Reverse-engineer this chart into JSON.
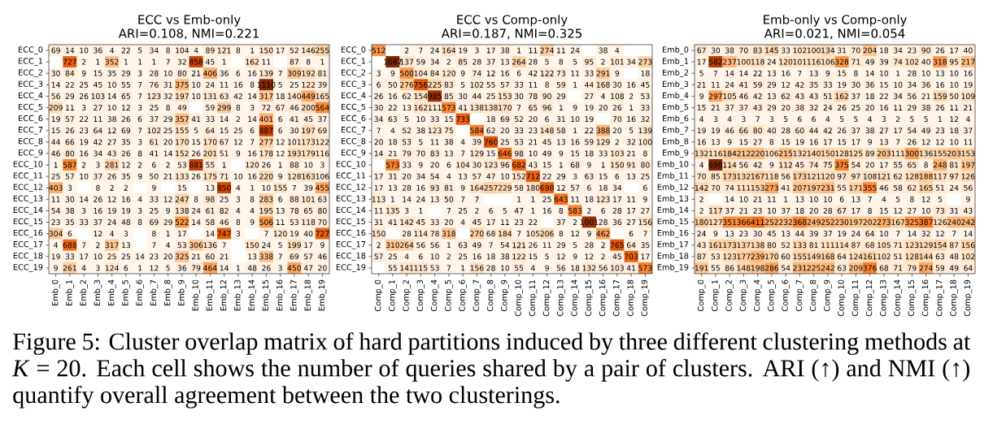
{
  "chart_data": [
    {
      "type": "heatmap",
      "title": "ECC vs Emb-only",
      "subtitle": "ARI=0.108, NMI=0.221",
      "categories": [
        "Emb_0",
        "Emb_1",
        "Emb_2",
        "Emb_3",
        "Emb_4",
        "Emb_5",
        "Emb_6",
        "Emb_7",
        "Emb_8",
        "Emb_9",
        "Emb_10",
        "Emb_11",
        "Emb_12",
        "Emb_13",
        "Emb_14",
        "Emb_15",
        "Emb_16",
        "Emb_17",
        "Emb_18",
        "Emb_19"
      ],
      "y_categories": [
        "ECC_0",
        "ECC_1",
        "ECC_2",
        "ECC_3",
        "ECC_4",
        "ECC_5",
        "ECC_6",
        "ECC_7",
        "ECC_8",
        "ECC_9",
        "ECC_10",
        "ECC_11",
        "ECC_12",
        "ECC_13",
        "ECC_14",
        "ECC_15",
        "ECC_16",
        "ECC_17",
        "ECC_18",
        "ECC_19"
      ],
      "cells": [
        [
          69,
          14,
          10,
          36,
          4,
          22,
          5,
          34,
          8,
          104,
          4,
          89,
          121,
          8,
          1,
          150,
          17,
          52,
          146,
          255
        ],
        [
          null,
          727,
          2,
          1,
          352,
          1,
          1,
          1,
          7,
          32,
          858,
          45,
          1,
          null,
          162,
          11,
          null,
          87,
          8,
          1
        ],
        [
          30,
          84,
          9,
          15,
          35,
          29,
          3,
          28,
          10,
          80,
          21,
          406,
          36,
          6,
          16,
          139,
          7,
          309,
          192,
          81
        ],
        [
          14,
          22,
          25,
          45,
          10,
          55,
          7,
          76,
          31,
          375,
          10,
          24,
          11,
          16,
          8,
          1110,
          5,
          25,
          122,
          39
        ],
        [
          56,
          29,
          26,
          103,
          14,
          65,
          7,
          123,
          32,
          197,
          10,
          131,
          63,
          42,
          14,
          317,
          18,
          140,
          449,
          165
        ],
        [
          209,
          11,
          3,
          27,
          10,
          12,
          3,
          25,
          8,
          49,
          null,
          59,
          299,
          8,
          3,
          72,
          67,
          46,
          200,
          564
        ],
        [
          19,
          57,
          22,
          11,
          38,
          26,
          6,
          37,
          29,
          357,
          41,
          33,
          14,
          2,
          14,
          401,
          6,
          41,
          45,
          37
        ],
        [
          15,
          26,
          23,
          64,
          12,
          69,
          7,
          102,
          25,
          155,
          5,
          64,
          15,
          25,
          6,
          887,
          6,
          30,
          197,
          69
        ],
        [
          44,
          66,
          19,
          42,
          27,
          35,
          3,
          61,
          20,
          170,
          15,
          170,
          67,
          12,
          7,
          277,
          12,
          101,
          173,
          122
        ],
        [
          46,
          80,
          16,
          34,
          43,
          26,
          8,
          41,
          14,
          152,
          26,
          201,
          51,
          9,
          16,
          178,
          12,
          193,
          179,
          116
        ],
        [
          1,
          587,
          2,
          3,
          281,
          12,
          2,
          6,
          2,
          53,
          881,
          55,
          1,
          null,
          120,
          26,
          1,
          88,
          10,
          3
        ],
        [
          25,
          57,
          10,
          37,
          26,
          35,
          9,
          50,
          21,
          133,
          26,
          175,
          71,
          10,
          16,
          220,
          9,
          128,
          163,
          106
        ],
        [
          403,
          3,
          null,
          8,
          2,
          2,
          null,
          9,
          null,
          15,
          null,
          13,
          850,
          4,
          1,
          10,
          155,
          7,
          39,
          455
        ],
        [
          11,
          30,
          14,
          26,
          12,
          16,
          4,
          33,
          12,
          247,
          8,
          98,
          25,
          3,
          8,
          283,
          6,
          88,
          101,
          63
        ],
        [
          54,
          38,
          3,
          16,
          19,
          19,
          3,
          25,
          9,
          138,
          24,
          61,
          82,
          4,
          4,
          195,
          13,
          78,
          65,
          80
        ],
        [
          23,
          35,
          33,
          37,
          24,
          48,
          8,
          69,
          29,
          522,
          14,
          58,
          46,
          8,
          9,
          506,
          11,
          53,
          118,
          70
        ],
        [
          304,
          6,
          null,
          12,
          4,
          3,
          null,
          8,
          1,
          17,
          null,
          14,
          747,
          3,
          null,
          7,
          120,
          19,
          40,
          727
        ],
        [
          4,
          688,
          7,
          2,
          317,
          13,
          null,
          7,
          4,
          53,
          306,
          136,
          7,
          null,
          150,
          24,
          5,
          199,
          17,
          9
        ],
        [
          19,
          33,
          17,
          10,
          25,
          25,
          14,
          23,
          20,
          325,
          21,
          60,
          21,
          null,
          13,
          338,
          7,
          69,
          57,
          46
        ],
        [
          9,
          261,
          4,
          3,
          124,
          6,
          1,
          12,
          5,
          36,
          79,
          464,
          14,
          1,
          48,
          26,
          3,
          450,
          47,
          20
        ]
      ],
      "data_labels": true,
      "annotations": [
        "Figure 5: Cluster overlap matrix of hard partitions induced by three different clustering methods at *K* = 20. Each cell shows the number of queries shared by a pair of clusters. ARI (↑) and NMI (↑) quantify overall agreement between the two clusterings."
      ]
    },
    {
      "type": "heatmap",
      "title": "ECC vs Comp-only",
      "subtitle": "ARI=0.187, NMI=0.325",
      "categories": [
        "Comp_0",
        "Comp_1",
        "Comp_2",
        "Comp_3",
        "Comp_4",
        "Comp_5",
        "Comp_6",
        "Comp_7",
        "Comp_8",
        "Comp_9",
        "Comp_10",
        "Comp_11",
        "Comp_12",
        "Comp_13",
        "Comp_14",
        "Comp_15",
        "Comp_16",
        "Comp_17",
        "Comp_18",
        "Comp_19"
      ],
      "y_categories": [
        "ECC_0",
        "ECC_1",
        "ECC_2",
        "ECC_3",
        "ECC_4",
        "ECC_5",
        "ECC_6",
        "ECC_7",
        "ECC_8",
        "ECC_9",
        "ECC_10",
        "ECC_11",
        "ECC_12",
        "ECC_13",
        "ECC_14",
        "ECC_15",
        "ECC_16",
        "ECC_17",
        "ECC_18",
        "ECC_19"
      ],
      "cells": [
        [
          512,
          null,
          2,
          7,
          24,
          164,
          19,
          3,
          17,
          38,
          1,
          11,
          274,
          11,
          24,
          null,
          38,
          4,
          null,
          null
        ],
        [
          null,
          1087,
          137,
          59,
          34,
          2,
          85,
          28,
          37,
          13,
          264,
          28,
          5,
          8,
          5,
          95,
          2,
          101,
          34,
          273
        ],
        [
          3,
          9,
          500,
          104,
          84,
          120,
          9,
          74,
          12,
          16,
          6,
          42,
          122,
          73,
          11,
          33,
          291,
          9,
          null,
          18
        ],
        [
          6,
          50,
          276,
          756,
          225,
          83,
          5,
          102,
          55,
          57,
          33,
          11,
          8,
          59,
          1,
          44,
          168,
          30,
          16,
          45
        ],
        [
          26,
          16,
          62,
          154,
          985,
          85,
          30,
          44,
          25,
          153,
          30,
          78,
          90,
          29,
          null,
          27,
          4,
          108,
          2,
          53
        ],
        [
          30,
          22,
          13,
          162,
          111,
          573,
          41,
          138,
          138,
          170,
          7,
          65,
          96,
          1,
          9,
          19,
          20,
          26,
          1,
          33
        ],
        [
          34,
          63,
          5,
          10,
          33,
          15,
          733,
          null,
          18,
          69,
          52,
          20,
          6,
          31,
          10,
          19,
          null,
          70,
          16,
          32
        ],
        [
          7,
          4,
          52,
          38,
          123,
          75,
          null,
          584,
          62,
          20,
          33,
          23,
          148,
          58,
          1,
          22,
          388,
          20,
          5,
          139
        ],
        [
          20,
          18,
          53,
          5,
          11,
          38,
          4,
          39,
          760,
          25,
          53,
          21,
          45,
          13,
          16,
          59,
          129,
          2,
          32,
          100
        ],
        [
          14,
          21,
          79,
          70,
          83,
          13,
          7,
          129,
          15,
          646,
          98,
          10,
          49,
          9,
          15,
          18,
          33,
          103,
          21,
          8
        ],
        [
          null,
          573,
          33,
          9,
          20,
          6,
          104,
          30,
          123,
          96,
          682,
          43,
          15,
          1,
          68,
          9,
          1,
          150,
          91,
          80
        ],
        [
          17,
          31,
          20,
          34,
          54,
          4,
          13,
          57,
          47,
          10,
          152,
          712,
          22,
          29,
          3,
          63,
          15,
          6,
          13,
          25
        ],
        [
          17,
          13,
          28,
          16,
          93,
          81,
          9,
          164,
          257,
          229,
          58,
          180,
          698,
          12,
          57,
          6,
          18,
          34,
          null,
          6
        ],
        [
          113,
          1,
          14,
          24,
          13,
          50,
          7,
          7,
          null,
          null,
          1,
          1,
          25,
          643,
          11,
          18,
          123,
          17,
          11,
          9
        ],
        [
          11,
          135,
          3,
          1,
          null,
          7,
          25,
          2,
          6,
          5,
          47,
          1,
          16,
          8,
          583,
          2,
          6,
          28,
          17,
          27
        ],
        [
          31,
          41,
          142,
          45,
          33,
          20,
          4,
          45,
          17,
          11,
          23,
          22,
          null,
          37,
          2,
          1001,
          28,
          36,
          27,
          156
        ],
        [
          150,
          null,
          28,
          114,
          78,
          318,
          null,
          270,
          68,
          184,
          7,
          105,
          206,
          8,
          12,
          9,
          462,
          null,
          6,
          7
        ],
        [
          2,
          310,
          264,
          56,
          56,
          1,
          63,
          49,
          7,
          54,
          121,
          26,
          11,
          29,
          5,
          28,
          2,
          765,
          64,
          35
        ],
        [
          57,
          25,
          4,
          6,
          10,
          2,
          25,
          16,
          18,
          38,
          122,
          15,
          5,
          12,
          9,
          12,
          2,
          45,
          703,
          17
        ],
        [
          null,
          55,
          141,
          115,
          53,
          7,
          1,
          156,
          28,
          10,
          55,
          4,
          9,
          56,
          18,
          132,
          56,
          103,
          41,
          573
        ]
      ],
      "data_labels": true
    },
    {
      "type": "heatmap",
      "title": "Emb-only vs Comp-only",
      "subtitle": "ARI=0.021, NMI=0.054",
      "categories": [
        "Comp_0",
        "Comp_1",
        "Comp_2",
        "Comp_3",
        "Comp_4",
        "Comp_5",
        "Comp_6",
        "Comp_7",
        "Comp_8",
        "Comp_9",
        "Comp_10",
        "Comp_11",
        "Comp_12",
        "Comp_13",
        "Comp_14",
        "Comp_15",
        "Comp_16",
        "Comp_17",
        "Comp_18",
        "Comp_19"
      ],
      "y_categories": [
        "Emb_0",
        "Emb_1",
        "Emb_2",
        "Emb_3",
        "Emb_4",
        "Emb_5",
        "Emb_6",
        "Emb_7",
        "Emb_8",
        "Emb_9",
        "Emb_10",
        "Emb_11",
        "Emb_12",
        "Emb_13",
        "Emb_14",
        "Emb_15",
        "Emb_16",
        "Emb_17",
        "Emb_18",
        "Emb_19"
      ],
      "cells": [
        [
          67,
          30,
          38,
          70,
          83,
          145,
          33,
          102,
          100,
          134,
          31,
          70,
          204,
          18,
          34,
          23,
          90,
          26,
          17,
          40
        ],
        [
          17,
          582,
          237,
          100,
          118,
          24,
          120,
          101,
          116,
          106,
          328,
          71,
          49,
          39,
          74,
          102,
          40,
          318,
          95,
          217
        ],
        [
          5,
          7,
          14,
          14,
          22,
          13,
          16,
          7,
          13,
          9,
          15,
          8,
          14,
          10,
          1,
          28,
          10,
          13,
          10,
          16
        ],
        [
          21,
          11,
          24,
          41,
          59,
          29,
          12,
          42,
          35,
          33,
          19,
          30,
          36,
          15,
          10,
          34,
          36,
          16,
          10,
          19
        ],
        [
          9,
          297,
          105,
          46,
          42,
          13,
          62,
          43,
          43,
          51,
          162,
          37,
          18,
          22,
          34,
          56,
          21,
          159,
          50,
          109
        ],
        [
          15,
          21,
          37,
          37,
          43,
          29,
          20,
          38,
          32,
          24,
          26,
          25,
          20,
          16,
          11,
          29,
          38,
          26,
          11,
          21
        ],
        [
          4,
          3,
          4,
          3,
          7,
          3,
          5,
          6,
          6,
          4,
          5,
          5,
          4,
          3,
          2,
          5,
          5,
          1,
          12,
          4
        ],
        [
          19,
          19,
          46,
          66,
          80,
          40,
          28,
          60,
          44,
          42,
          26,
          37,
          38,
          27,
          17,
          54,
          49,
          23,
          18,
          37
        ],
        [
          16,
          13,
          9,
          15,
          27,
          8,
          15,
          19,
          16,
          17,
          15,
          17,
          9,
          13,
          7,
          26,
          12,
          12,
          10,
          11
        ],
        [
          132,
          116,
          184,
          212,
          220,
          106,
          215,
          132,
          140,
          150,
          128,
          125,
          89,
          203,
          111,
          300,
          136,
          155,
          203,
          153
        ],
        [
          4,
          698,
          114,
          56,
          42,
          9,
          112,
          45,
          74,
          75,
          375,
          54,
          20,
          17,
          55,
          65,
          8,
          248,
          81,
          197
        ],
        [
          70,
          85,
          173,
          132,
          167,
          118,
          56,
          173,
          121,
          120,
          97,
          97,
          108,
          121,
          62,
          128,
          188,
          117,
          97,
          126
        ],
        [
          142,
          70,
          74,
          111,
          153,
          273,
          41,
          207,
          197,
          231,
          55,
          171,
          355,
          46,
          58,
          62,
          165,
          51,
          24,
          56
        ],
        [
          2,
          null,
          14,
          10,
          21,
          11,
          1,
          13,
          10,
          10,
          6,
          13,
          7,
          4,
          5,
          8,
          12,
          5,
          null,
          9
        ],
        [
          2,
          117,
          37,
          21,
          23,
          10,
          37,
          18,
          20,
          28,
          67,
          17,
          8,
          15,
          12,
          27,
          10,
          73,
          31,
          43
        ],
        [
          180,
          127,
          351,
          366,
          411,
          252,
          232,
          368,
          249,
          252,
          230,
          197,
          202,
          273,
          167,
          325,
          387,
          126,
          240,
          242
        ],
        [
          24,
          9,
          13,
          23,
          30,
          45,
          13,
          44,
          39,
          37,
          19,
          24,
          64,
          10,
          7,
          14,
          32,
          12,
          7,
          14
        ],
        [
          43,
          161,
          173,
          137,
          138,
          80,
          52,
          133,
          81,
          111,
          114,
          87,
          68,
          105,
          71,
          123,
          129,
          154,
          87,
          156
        ],
        [
          87,
          53,
          123,
          177,
          239,
          170,
          60,
          155,
          149,
          168,
          64,
          124,
          161,
          102,
          51,
          128,
          144,
          63,
          48,
          102
        ],
        [
          191,
          55,
          86,
          148,
          198,
          286,
          54,
          231,
          225,
          242,
          63,
          209,
          376,
          68,
          71,
          79,
          274,
          59,
          49,
          64
        ]
      ],
      "data_labels": true
    }
  ]
}
